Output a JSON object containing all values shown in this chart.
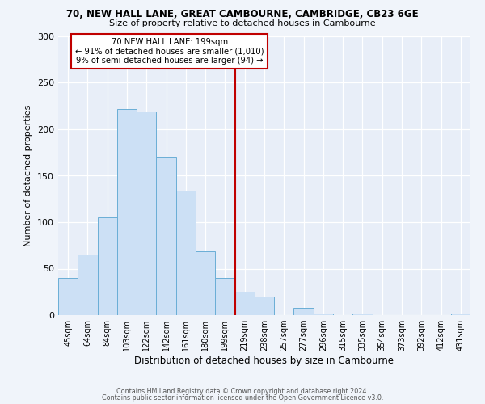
{
  "title": "70, NEW HALL LANE, GREAT CAMBOURNE, CAMBRIDGE, CB23 6GE",
  "subtitle": "Size of property relative to detached houses in Cambourne",
  "xlabel": "Distribution of detached houses by size in Cambourne",
  "ylabel": "Number of detached properties",
  "bar_labels": [
    "45sqm",
    "64sqm",
    "84sqm",
    "103sqm",
    "122sqm",
    "142sqm",
    "161sqm",
    "180sqm",
    "199sqm",
    "219sqm",
    "238sqm",
    "257sqm",
    "277sqm",
    "296sqm",
    "315sqm",
    "335sqm",
    "354sqm",
    "373sqm",
    "392sqm",
    "412sqm",
    "431sqm"
  ],
  "bar_heights": [
    40,
    65,
    105,
    222,
    219,
    170,
    134,
    69,
    40,
    25,
    20,
    0,
    8,
    2,
    0,
    2,
    0,
    0,
    0,
    0,
    2
  ],
  "bar_color": "#cce0f5",
  "bar_edge_color": "#6aaed6",
  "vline_x": 8.5,
  "vline_color": "#c00000",
  "annotation_title": "70 NEW HALL LANE: 199sqm",
  "annotation_line1": "← 91% of detached houses are smaller (1,010)",
  "annotation_line2": "9% of semi-detached houses are larger (94) →",
  "annotation_box_color": "#c00000",
  "ylim": [
    0,
    300
  ],
  "yticks": [
    0,
    50,
    100,
    150,
    200,
    250,
    300
  ],
  "footer1": "Contains HM Land Registry data © Crown copyright and database right 2024.",
  "footer2": "Contains public sector information licensed under the Open Government Licence v3.0.",
  "bg_color": "#f0f4fa",
  "plot_bg_color": "#e8eef8"
}
